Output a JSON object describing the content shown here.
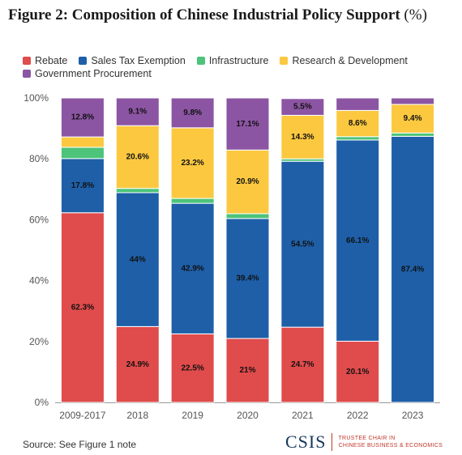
{
  "title": {
    "main": "Figure 2: Composition of Chinese Industrial Policy Support",
    "unit": "(%)"
  },
  "footer": {
    "source": "Source: See Figure 1 note",
    "logo": "CSIS",
    "logo_sub_line1": "TRUSTEE CHAIR IN",
    "logo_sub_line2": "CHINESE BUSINESS & ECONOMICS"
  },
  "colors": {
    "rebate": "#e04b4b",
    "sales_tax": "#1e5fa8",
    "infrastructure": "#4cc47a",
    "rnd": "#fbc840",
    "procurement": "#8c55a3"
  },
  "chart_data": {
    "type": "bar",
    "stacked": true,
    "categories": [
      "2009-2017",
      "2018",
      "2019",
      "2020",
      "2021",
      "2022",
      "2023"
    ],
    "series": [
      {
        "name": "Rebate",
        "values": [
          62.3,
          24.9,
          22.5,
          21,
          24.7,
          20.1,
          0
        ],
        "labels": [
          "62.3%",
          "24.9%",
          "22.5%",
          "21%",
          "24.7%",
          "20.1%",
          ""
        ]
      },
      {
        "name": "Sales Tax Exemption",
        "values": [
          17.8,
          44,
          42.9,
          39.4,
          54.5,
          66.1,
          87.4
        ],
        "labels": [
          "17.8%",
          "44%",
          "42.9%",
          "39.4%",
          "54.5%",
          "66.1%",
          "87.4%"
        ]
      },
      {
        "name": "Infrastructure",
        "values": [
          3.7,
          1.4,
          1.6,
          1.6,
          0.8,
          1.1,
          1.1
        ],
        "labels": [
          "",
          "",
          "",
          "",
          "",
          "",
          ""
        ]
      },
      {
        "name": "Research & Development",
        "values": [
          3.4,
          20.6,
          23.2,
          20.9,
          14.3,
          8.6,
          9.4
        ],
        "labels": [
          "",
          "20.6%",
          "23.2%",
          "20.9%",
          "14.3%",
          "8.6%",
          "9.4%"
        ]
      },
      {
        "name": "Government Procurement",
        "values": [
          12.8,
          9.1,
          9.8,
          17.1,
          5.5,
          4.1,
          2.1
        ],
        "labels": [
          "12.8%",
          "9.1%",
          "9.8%",
          "17.1%",
          "5.5%",
          "",
          ""
        ]
      }
    ],
    "ylim": [
      0,
      100
    ],
    "yticks": [
      0,
      20,
      40,
      60,
      80,
      100
    ],
    "ytick_labels": [
      "0%",
      "20%",
      "40%",
      "60%",
      "80%",
      "100%"
    ],
    "legend_position": "top-left",
    "grid": false
  }
}
